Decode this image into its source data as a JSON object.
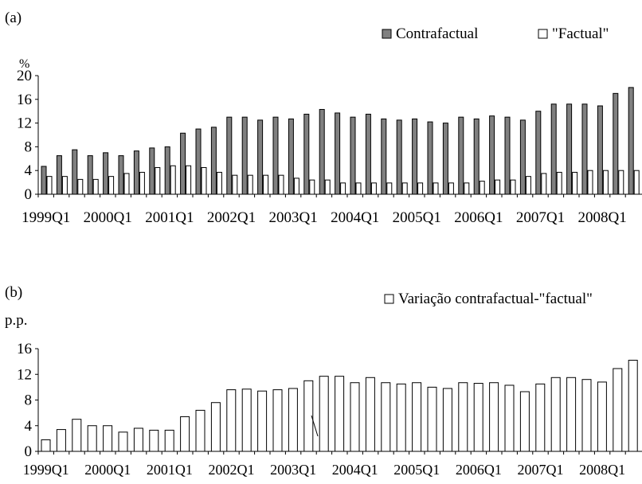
{
  "chart_data": [
    {
      "panel_label": "(a)",
      "type": "bar",
      "ylabel": "%",
      "ylim": [
        0,
        20
      ],
      "yticks": [
        "0",
        "4",
        "8",
        "12",
        "16",
        "20"
      ],
      "xtick_labels": [
        "1999Q1",
        "2000Q1",
        "2001Q1",
        "2002Q1",
        "2003Q1",
        "2004Q1",
        "2005Q1",
        "2006Q1",
        "2007Q1",
        "2008Q1"
      ],
      "legend_position": "top-right",
      "series": [
        {
          "name": "Contrafactual",
          "color": "#808080",
          "values": [
            4.7,
            6.5,
            7.5,
            6.5,
            7.0,
            6.5,
            7.3,
            7.8,
            8.0,
            10.3,
            11.0,
            11.3,
            13.0,
            13.0,
            12.5,
            13.0,
            12.7,
            13.5,
            14.3,
            13.7,
            13.0,
            13.5,
            12.7,
            12.5,
            12.7,
            12.2,
            12.0,
            13.0,
            12.7,
            13.2,
            13.0,
            12.5,
            14.0,
            15.2,
            15.2,
            15.2,
            14.9,
            17.0,
            18.0
          ]
        },
        {
          "name": "\"Factual\"",
          "color": "#ffffff",
          "values": [
            3.0,
            3.0,
            2.5,
            2.5,
            3.0,
            3.5,
            3.7,
            4.5,
            4.8,
            4.8,
            4.5,
            3.7,
            3.2,
            3.2,
            3.2,
            3.2,
            2.7,
            2.4,
            2.4,
            1.9,
            1.9,
            1.9,
            1.9,
            1.9,
            1.9,
            1.9,
            1.9,
            1.9,
            2.2,
            2.4,
            2.4,
            3.0,
            3.5,
            3.7,
            3.7,
            4.0,
            4.0,
            4.0,
            4.0
          ]
        }
      ]
    },
    {
      "panel_label": "(b)",
      "type": "bar",
      "ylabel": "p.p.",
      "ylim": [
        0,
        16
      ],
      "yticks": [
        "0",
        "4",
        "8",
        "12",
        "16"
      ],
      "xtick_labels": [
        "1999Q1",
        "2000Q1",
        "2001Q1",
        "2002Q1",
        "2003Q1",
        "2004Q1",
        "2005Q1",
        "2006Q1",
        "2007Q1",
        "2008Q1"
      ],
      "legend_position": "top-right",
      "series": [
        {
          "name": "Variação contrafactual-\"factual\"",
          "color": "#ffffff",
          "values": [
            1.8,
            3.4,
            5.0,
            4.0,
            4.0,
            3.0,
            3.6,
            3.3,
            3.3,
            5.4,
            6.4,
            7.6,
            9.6,
            9.7,
            9.4,
            9.6,
            9.8,
            11.0,
            11.7,
            11.7,
            10.7,
            11.5,
            10.7,
            10.5,
            10.7,
            10.0,
            9.8,
            10.7,
            10.6,
            10.7,
            10.3,
            9.3,
            10.5,
            11.5,
            11.5,
            11.2,
            10.8,
            12.9,
            14.2
          ]
        }
      ]
    }
  ]
}
